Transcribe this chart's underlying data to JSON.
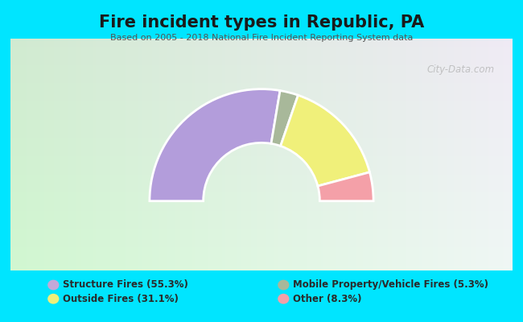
{
  "title": "Fire incident types in Republic, PA",
  "subtitle": "Based on 2005 - 2018 National Fire Incident Reporting System data",
  "background_outer": "#00e5ff",
  "background_inner_tl": "#d4edd4",
  "background_inner_br": "#e8f8f8",
  "watermark": "City-Data.com",
  "categories": [
    "Structure Fires (55.3%)",
    "Outside Fires (31.1%)",
    "Mobile Property/Vehicle Fires (5.3%)",
    "Other (8.3%)"
  ],
  "values": [
    55.3,
    5.3,
    31.1,
    8.3
  ],
  "colors": [
    "#b39ddb",
    "#a8b89a",
    "#f0f07a",
    "#f4a0a8"
  ],
  "legend_colors": [
    "#c4a8d8",
    "#f0f07a",
    "#a8b89a",
    "#f4a0a8"
  ],
  "total": 100,
  "outer_r": 1.0,
  "inner_r": 0.52
}
